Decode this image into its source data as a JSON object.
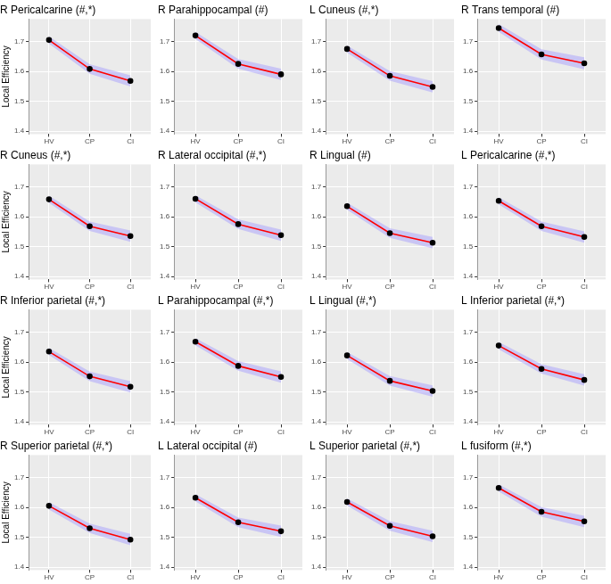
{
  "chart_data": [
    {
      "type": "line",
      "title": "R Pericalcarine (#,*)",
      "y_label": "Local Efficiency",
      "categories": [
        "HV",
        "CP",
        "CI"
      ],
      "values": [
        1.705,
        1.608,
        1.568
      ],
      "lower": [
        1.693,
        1.592,
        1.549
      ],
      "upper": [
        1.717,
        1.624,
        1.587
      ],
      "ylim": [
        1.39,
        1.775
      ],
      "yticks": [
        1.4,
        1.5,
        1.6,
        1.7
      ],
      "grid": true,
      "color": "#ff0000",
      "marker": "circle"
    },
    {
      "type": "line",
      "title": "R Parahippocampal (#)",
      "categories": [
        "HV",
        "CP",
        "CI"
      ],
      "values": [
        1.72,
        1.625,
        1.59
      ],
      "lower": [
        1.708,
        1.609,
        1.571
      ],
      "upper": [
        1.732,
        1.641,
        1.609
      ],
      "ylim": [
        1.39,
        1.775
      ],
      "yticks": [
        1.4,
        1.5,
        1.6,
        1.7
      ],
      "grid": true,
      "color": "#ff0000",
      "marker": "circle"
    },
    {
      "type": "line",
      "title": "L Cuneus (#,*)",
      "categories": [
        "HV",
        "CP",
        "CI"
      ],
      "values": [
        1.675,
        1.585,
        1.548
      ],
      "lower": [
        1.663,
        1.569,
        1.529
      ],
      "upper": [
        1.687,
        1.601,
        1.567
      ],
      "ylim": [
        1.39,
        1.775
      ],
      "yticks": [
        1.4,
        1.5,
        1.6,
        1.7
      ],
      "grid": true,
      "color": "#ff0000",
      "marker": "circle"
    },
    {
      "type": "line",
      "title": "R Trans temporal (#)",
      "categories": [
        "HV",
        "CP",
        "CI"
      ],
      "values": [
        1.745,
        1.657,
        1.627
      ],
      "lower": [
        1.732,
        1.64,
        1.607
      ],
      "upper": [
        1.758,
        1.674,
        1.647
      ],
      "ylim": [
        1.39,
        1.775
      ],
      "yticks": [
        1.4,
        1.5,
        1.6,
        1.7
      ],
      "grid": true,
      "color": "#ff0000",
      "marker": "circle"
    },
    {
      "type": "line",
      "title": "R Cuneus (#,*)",
      "y_label": "Local Efficiency",
      "categories": [
        "HV",
        "CP",
        "CI"
      ],
      "values": [
        1.658,
        1.568,
        1.535
      ],
      "lower": [
        1.646,
        1.552,
        1.516
      ],
      "upper": [
        1.67,
        1.584,
        1.554
      ],
      "ylim": [
        1.39,
        1.775
      ],
      "yticks": [
        1.4,
        1.5,
        1.6,
        1.7
      ],
      "grid": true,
      "color": "#ff0000",
      "marker": "circle"
    },
    {
      "type": "line",
      "title": "R Lateral occipital (#,*)",
      "categories": [
        "HV",
        "CP",
        "CI"
      ],
      "values": [
        1.66,
        1.575,
        1.538
      ],
      "lower": [
        1.648,
        1.559,
        1.519
      ],
      "upper": [
        1.672,
        1.591,
        1.557
      ],
      "ylim": [
        1.39,
        1.775
      ],
      "yticks": [
        1.4,
        1.5,
        1.6,
        1.7
      ],
      "grid": true,
      "color": "#ff0000",
      "marker": "circle"
    },
    {
      "type": "line",
      "title": "R Lingual (#)",
      "categories": [
        "HV",
        "CP",
        "CI"
      ],
      "values": [
        1.635,
        1.545,
        1.513
      ],
      "lower": [
        1.623,
        1.529,
        1.494
      ],
      "upper": [
        1.647,
        1.561,
        1.532
      ],
      "ylim": [
        1.39,
        1.775
      ],
      "yticks": [
        1.4,
        1.5,
        1.6,
        1.7
      ],
      "grid": true,
      "color": "#ff0000",
      "marker": "circle"
    },
    {
      "type": "line",
      "title": "L Pericalcarine (#,*)",
      "categories": [
        "HV",
        "CP",
        "CI"
      ],
      "values": [
        1.653,
        1.568,
        1.532
      ],
      "lower": [
        1.641,
        1.552,
        1.513
      ],
      "upper": [
        1.665,
        1.584,
        1.551
      ],
      "ylim": [
        1.39,
        1.775
      ],
      "yticks": [
        1.4,
        1.5,
        1.6,
        1.7
      ],
      "grid": true,
      "color": "#ff0000",
      "marker": "circle"
    },
    {
      "type": "line",
      "title": "R Inferior parietal (#,*)",
      "y_label": "Local Efficiency",
      "categories": [
        "HV",
        "CP",
        "CI"
      ],
      "values": [
        1.635,
        1.552,
        1.517
      ],
      "lower": [
        1.623,
        1.536,
        1.498
      ],
      "upper": [
        1.647,
        1.568,
        1.536
      ],
      "ylim": [
        1.39,
        1.775
      ],
      "yticks": [
        1.4,
        1.5,
        1.6,
        1.7
      ],
      "grid": true,
      "color": "#ff0000",
      "marker": "circle"
    },
    {
      "type": "line",
      "title": "L Parahippocampal (#,*)",
      "categories": [
        "HV",
        "CP",
        "CI"
      ],
      "values": [
        1.668,
        1.587,
        1.55
      ],
      "lower": [
        1.656,
        1.571,
        1.531
      ],
      "upper": [
        1.68,
        1.603,
        1.569
      ],
      "ylim": [
        1.39,
        1.775
      ],
      "yticks": [
        1.4,
        1.5,
        1.6,
        1.7
      ],
      "grid": true,
      "color": "#ff0000",
      "marker": "circle"
    },
    {
      "type": "line",
      "title": "L Lingual (#,*)",
      "categories": [
        "HV",
        "CP",
        "CI"
      ],
      "values": [
        1.622,
        1.537,
        1.503
      ],
      "lower": [
        1.61,
        1.521,
        1.484
      ],
      "upper": [
        1.634,
        1.553,
        1.522
      ],
      "ylim": [
        1.39,
        1.775
      ],
      "yticks": [
        1.4,
        1.5,
        1.6,
        1.7
      ],
      "grid": true,
      "color": "#ff0000",
      "marker": "circle"
    },
    {
      "type": "line",
      "title": "L Inferior parietal (#,*)",
      "categories": [
        "HV",
        "CP",
        "CI"
      ],
      "values": [
        1.655,
        1.577,
        1.54
      ],
      "lower": [
        1.643,
        1.561,
        1.521
      ],
      "upper": [
        1.667,
        1.593,
        1.559
      ],
      "ylim": [
        1.39,
        1.775
      ],
      "yticks": [
        1.4,
        1.5,
        1.6,
        1.7
      ],
      "grid": true,
      "color": "#ff0000",
      "marker": "circle"
    },
    {
      "type": "line",
      "title": "R Superior parietal (#,*)",
      "y_label": "Local Efficiency",
      "categories": [
        "HV",
        "CP",
        "CI"
      ],
      "values": [
        1.605,
        1.53,
        1.492
      ],
      "lower": [
        1.593,
        1.514,
        1.473
      ],
      "upper": [
        1.617,
        1.546,
        1.511
      ],
      "ylim": [
        1.39,
        1.775
      ],
      "yticks": [
        1.4,
        1.5,
        1.6,
        1.7
      ],
      "grid": true,
      "color": "#ff0000",
      "marker": "circle"
    },
    {
      "type": "line",
      "title": "L Lateral occipital (#)",
      "categories": [
        "HV",
        "CP",
        "CI"
      ],
      "values": [
        1.632,
        1.55,
        1.52
      ],
      "lower": [
        1.62,
        1.534,
        1.501
      ],
      "upper": [
        1.644,
        1.566,
        1.539
      ],
      "ylim": [
        1.39,
        1.775
      ],
      "yticks": [
        1.4,
        1.5,
        1.6,
        1.7
      ],
      "grid": true,
      "color": "#ff0000",
      "marker": "circle"
    },
    {
      "type": "line",
      "title": "L Superior parietal (#,*)",
      "categories": [
        "HV",
        "CP",
        "CI"
      ],
      "values": [
        1.618,
        1.538,
        1.503
      ],
      "lower": [
        1.606,
        1.522,
        1.484
      ],
      "upper": [
        1.63,
        1.554,
        1.522
      ],
      "ylim": [
        1.39,
        1.775
      ],
      "yticks": [
        1.4,
        1.5,
        1.6,
        1.7
      ],
      "grid": true,
      "color": "#ff0000",
      "marker": "circle"
    },
    {
      "type": "line",
      "title": "L fusiform (#,*)",
      "categories": [
        "HV",
        "CP",
        "CI"
      ],
      "values": [
        1.665,
        1.585,
        1.553
      ],
      "lower": [
        1.653,
        1.569,
        1.534
      ],
      "upper": [
        1.677,
        1.601,
        1.572
      ],
      "ylim": [
        1.39,
        1.775
      ],
      "yticks": [
        1.4,
        1.5,
        1.6,
        1.7
      ],
      "grid": true,
      "color": "#ff0000",
      "marker": "circle"
    }
  ]
}
